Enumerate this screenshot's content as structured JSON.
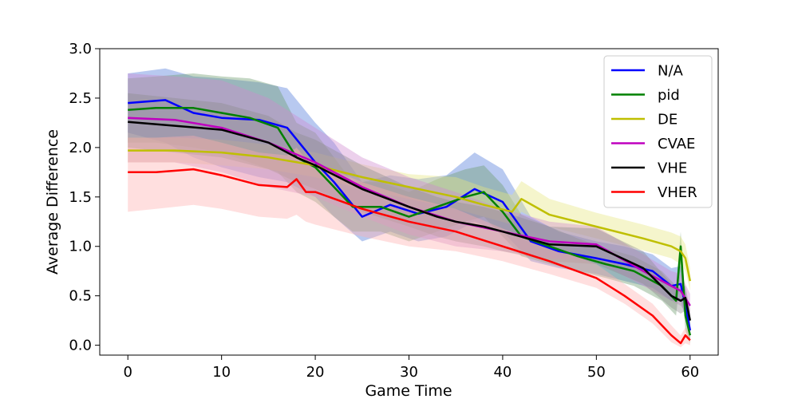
{
  "chart_data": {
    "type": "line",
    "title": "",
    "xlabel": "Game Time",
    "ylabel": "Average Difference",
    "xlim": [
      -3,
      63
    ],
    "ylim": [
      -0.1,
      3.0
    ],
    "xticks": [
      0,
      10,
      20,
      30,
      40,
      50,
      60
    ],
    "yticks": [
      0.0,
      0.5,
      1.0,
      1.5,
      2.0,
      2.5,
      3.0
    ],
    "xtick_labels": [
      "0",
      "10",
      "20",
      "30",
      "40",
      "50",
      "60"
    ],
    "ytick_labels": [
      "0.0",
      "0.5",
      "1.0",
      "1.5",
      "2.0",
      "2.5",
      "3.0"
    ],
    "grid": false,
    "legend_position": "top-right",
    "series": [
      {
        "name": "N/A",
        "color": "#0000ff",
        "band_color": "#4d79d9",
        "x": [
          0,
          4,
          7,
          10,
          14,
          17,
          20,
          22,
          25,
          28,
          31,
          34,
          37,
          40,
          43,
          46,
          50,
          53,
          56,
          58,
          59,
          59.5,
          60
        ],
        "y": [
          2.45,
          2.48,
          2.35,
          2.3,
          2.28,
          2.2,
          1.85,
          1.65,
          1.3,
          1.42,
          1.33,
          1.4,
          1.58,
          1.45,
          1.05,
          0.95,
          0.88,
          0.82,
          0.75,
          0.6,
          0.62,
          0.4,
          0.15
        ],
        "lower": [
          2.15,
          2.05,
          1.9,
          1.8,
          1.7,
          1.65,
          1.5,
          1.3,
          1.05,
          1.15,
          1.05,
          1.1,
          1.25,
          1.15,
          0.85,
          0.78,
          0.72,
          0.65,
          0.58,
          0.45,
          0.45,
          0.28,
          0.05
        ],
        "upper": [
          2.75,
          2.8,
          2.72,
          2.7,
          2.66,
          2.6,
          2.25,
          2.05,
          1.65,
          1.72,
          1.68,
          1.72,
          1.95,
          1.78,
          1.3,
          1.15,
          1.05,
          1.0,
          0.92,
          0.78,
          0.8,
          0.55,
          0.25
        ]
      },
      {
        "name": "pid",
        "color": "#008000",
        "band_color": "#6b9b6b",
        "x": [
          0,
          3,
          7,
          10,
          13,
          16,
          18,
          20,
          22,
          24,
          27,
          30,
          33,
          36,
          38,
          40,
          42,
          45,
          48,
          51,
          54,
          57,
          58.5,
          59,
          59.5,
          60
        ],
        "y": [
          2.38,
          2.4,
          2.4,
          2.35,
          2.3,
          2.2,
          1.9,
          1.8,
          1.6,
          1.4,
          1.4,
          1.3,
          1.4,
          1.5,
          1.55,
          1.35,
          1.1,
          1.0,
          0.9,
          0.82,
          0.75,
          0.6,
          0.45,
          1.0,
          0.3,
          0.1
        ],
        "lower": [
          2.05,
          2.05,
          2.0,
          1.95,
          1.85,
          1.75,
          1.55,
          1.45,
          1.3,
          1.15,
          1.15,
          1.05,
          1.15,
          1.25,
          1.3,
          1.1,
          0.9,
          0.82,
          0.75,
          0.68,
          0.6,
          0.45,
          0.3,
          0.75,
          0.15,
          0.02
        ],
        "upper": [
          2.7,
          2.72,
          2.75,
          2.72,
          2.7,
          2.62,
          2.25,
          2.15,
          1.9,
          1.65,
          1.65,
          1.55,
          1.68,
          1.78,
          1.82,
          1.62,
          1.32,
          1.2,
          1.08,
          0.98,
          0.9,
          0.75,
          0.6,
          1.15,
          0.45,
          0.2
        ]
      },
      {
        "name": "DE",
        "color": "#bfbf00",
        "band_color": "#e6e680",
        "x": [
          0,
          5,
          10,
          15,
          20,
          25,
          30,
          35,
          38,
          41,
          42,
          45,
          50,
          55,
          58,
          59,
          59.5,
          60
        ],
        "y": [
          1.97,
          1.97,
          1.95,
          1.9,
          1.82,
          1.7,
          1.6,
          1.5,
          1.42,
          1.35,
          1.48,
          1.32,
          1.2,
          1.08,
          1.0,
          0.95,
          0.88,
          0.65
        ],
        "lower": [
          1.85,
          1.85,
          1.82,
          1.78,
          1.7,
          1.58,
          1.48,
          1.38,
          1.3,
          1.22,
          1.35,
          1.2,
          1.08,
          0.96,
          0.88,
          0.82,
          0.75,
          0.55
        ],
        "upper": [
          2.1,
          2.1,
          2.08,
          2.03,
          1.95,
          1.83,
          1.73,
          1.7,
          1.6,
          1.52,
          1.66,
          1.48,
          1.34,
          1.22,
          1.14,
          1.1,
          1.02,
          0.78
        ]
      },
      {
        "name": "CVAE",
        "color": "#bf00bf",
        "band_color": "#d08ad0",
        "x": [
          0,
          5,
          10,
          15,
          20,
          25,
          30,
          35,
          40,
          45,
          50,
          55,
          58,
          59,
          60
        ],
        "y": [
          2.3,
          2.28,
          2.2,
          2.05,
          1.85,
          1.6,
          1.4,
          1.25,
          1.15,
          1.05,
          1.02,
          0.75,
          0.6,
          0.55,
          0.4
        ],
        "lower": [
          1.85,
          1.85,
          1.75,
          1.6,
          1.5,
          1.3,
          1.12,
          1.0,
          0.95,
          0.88,
          0.85,
          0.6,
          0.45,
          0.4,
          0.28
        ],
        "upper": [
          2.75,
          2.72,
          2.68,
          2.5,
          2.2,
          1.9,
          1.7,
          1.55,
          1.38,
          1.25,
          1.2,
          0.92,
          0.75,
          0.72,
          0.52
        ]
      },
      {
        "name": "VHE",
        "color": "#000000",
        "band_color": "#8c8c8c",
        "x": [
          0,
          5,
          10,
          15,
          18,
          20,
          25,
          30,
          33,
          35,
          38,
          40,
          45,
          50,
          55,
          58,
          59,
          59.5,
          60
        ],
        "y": [
          2.26,
          2.22,
          2.18,
          2.05,
          1.9,
          1.82,
          1.58,
          1.4,
          1.3,
          1.25,
          1.2,
          1.15,
          1.02,
          1.0,
          0.78,
          0.5,
          0.45,
          0.48,
          0.25
        ],
        "lower": [
          2.0,
          1.95,
          1.9,
          1.78,
          1.65,
          1.58,
          1.35,
          1.2,
          1.1,
          1.05,
          1.0,
          0.95,
          0.85,
          0.82,
          0.62,
          0.38,
          0.32,
          0.35,
          0.15
        ],
        "upper": [
          2.55,
          2.5,
          2.45,
          2.32,
          2.15,
          2.08,
          1.82,
          1.6,
          1.5,
          1.45,
          1.4,
          1.35,
          1.2,
          1.18,
          0.95,
          0.62,
          0.58,
          0.6,
          0.35
        ]
      },
      {
        "name": "VHER",
        "color": "#ff0000",
        "band_color": "#ffb0b0",
        "x": [
          0,
          3,
          7,
          10,
          14,
          17,
          18,
          19,
          20,
          25,
          30,
          35,
          40,
          45,
          50,
          53,
          56,
          58,
          59,
          59.5,
          60
        ],
        "y": [
          1.75,
          1.75,
          1.78,
          1.72,
          1.62,
          1.6,
          1.68,
          1.55,
          1.55,
          1.38,
          1.25,
          1.15,
          1.0,
          0.85,
          0.68,
          0.5,
          0.3,
          0.1,
          0.02,
          0.1,
          0.05
        ],
        "lower": [
          1.35,
          1.38,
          1.42,
          1.38,
          1.3,
          1.28,
          1.32,
          1.25,
          1.22,
          1.1,
          1.0,
          0.95,
          0.85,
          0.72,
          0.58,
          0.42,
          0.22,
          0.03,
          -0.02,
          0.02,
          0.0
        ],
        "upper": [
          2.1,
          2.1,
          2.12,
          2.05,
          1.95,
          1.92,
          2.0,
          1.88,
          1.85,
          1.65,
          1.5,
          1.38,
          1.18,
          1.0,
          0.82,
          0.62,
          0.42,
          0.2,
          0.1,
          0.18,
          0.12
        ]
      }
    ]
  }
}
